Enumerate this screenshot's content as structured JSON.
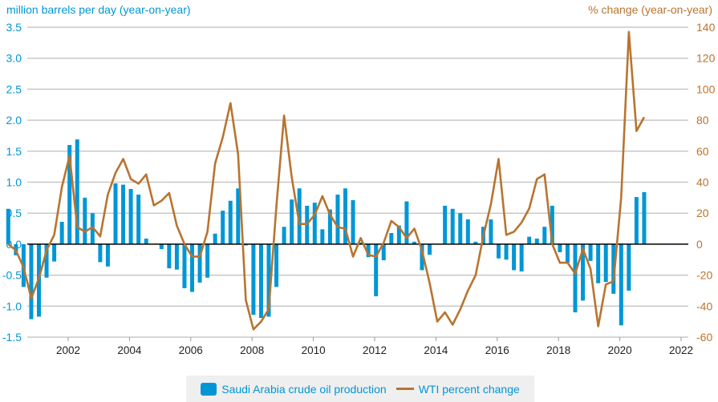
{
  "chart_data": {
    "type": "bar",
    "title": "",
    "ylabel_left": "million barrels per day (year-on-year)",
    "ylabel_right": "% change (year-on-year)",
    "xlabel": "",
    "ylim_left": [
      -1.5,
      3.5
    ],
    "ylim_right": [
      -60,
      140
    ],
    "yticks_left": [
      "3.5",
      "3.0",
      "2.5",
      "2.0",
      "1.5",
      "1.0",
      "0.5",
      "0.0",
      "-0.5",
      "-1.0",
      "-1.5"
    ],
    "yticks_right": [
      "140",
      "120",
      "100",
      "80",
      "60",
      "40",
      "20",
      "0",
      "-20",
      "-40",
      "-60"
    ],
    "xticks": [
      "2002",
      "2004",
      "2006",
      "2008",
      "2010",
      "2012",
      "2014",
      "2016",
      "2018",
      "2020",
      "2022"
    ],
    "x_range": [
      2001.0,
      2022.0
    ],
    "grid": true,
    "legend_position": "bottom",
    "colors": {
      "bars": "#0096d6",
      "line": "#b8742f",
      "grid": "#c8c8c8",
      "zero": "#000000"
    },
    "series": [
      {
        "name": "Saudi Arabia crude oil production",
        "type": "bar",
        "axis": "left",
        "x_start": 2001.0,
        "x_step": 0.25,
        "values": [
          0.57,
          -0.18,
          -0.69,
          -1.21,
          -1.17,
          -0.54,
          -0.28,
          0.36,
          1.6,
          1.69,
          0.75,
          0.5,
          -0.29,
          -0.36,
          0.98,
          0.96,
          0.89,
          0.8,
          0.09,
          0.0,
          -0.08,
          -0.39,
          -0.41,
          -0.71,
          -0.77,
          -0.62,
          -0.54,
          0.17,
          0.54,
          0.7,
          0.9,
          -0.02,
          -1.14,
          -1.19,
          -1.17,
          -0.69,
          0.28,
          0.72,
          0.9,
          0.62,
          0.67,
          0.24,
          0.56,
          0.8,
          0.9,
          0.71,
          0.03,
          -0.21,
          -0.84,
          -0.26,
          0.18,
          0.3,
          0.69,
          0.04,
          -0.42,
          -0.17,
          0.0,
          0.62,
          0.57,
          0.5,
          0.4,
          0.04,
          0.28,
          0.4,
          -0.23,
          -0.25,
          -0.42,
          -0.44,
          0.12,
          0.09,
          0.28,
          0.62,
          -0.13,
          -0.3,
          -1.1,
          -0.91,
          -0.27,
          -0.63,
          -0.61,
          -0.8,
          -1.31,
          -0.75,
          0.76,
          0.84
        ]
      },
      {
        "name": "WTI percent change",
        "type": "line",
        "axis": "right",
        "x_start": 2001.0,
        "x_step": 0.25,
        "values": [
          0,
          -4,
          -15,
          -35,
          -22,
          -4,
          6,
          37,
          57,
          11,
          8,
          11,
          5,
          32,
          46,
          55,
          42,
          39,
          45,
          25,
          28,
          33,
          12,
          0,
          -8,
          -8,
          8,
          52,
          69,
          91,
          58,
          -36,
          -55,
          -50,
          -42,
          25,
          83,
          43,
          13,
          13,
          19,
          31,
          19,
          11,
          10,
          -8,
          4,
          -7,
          -8,
          1,
          15,
          11,
          4,
          10,
          -4,
          -25,
          -50,
          -44,
          -52,
          -42,
          -30,
          -20,
          5,
          26,
          55,
          6,
          8,
          14,
          23,
          42,
          45,
          0,
          -12,
          -12,
          -19,
          -3,
          -16,
          -53,
          -26,
          -24,
          30,
          137,
          73,
          82
        ]
      }
    ]
  },
  "legend": {
    "items": [
      {
        "label": "Saudi Arabia crude oil production",
        "icon": "bar-swatch"
      },
      {
        "label": "WTI percent change",
        "icon": "line-swatch"
      }
    ]
  }
}
